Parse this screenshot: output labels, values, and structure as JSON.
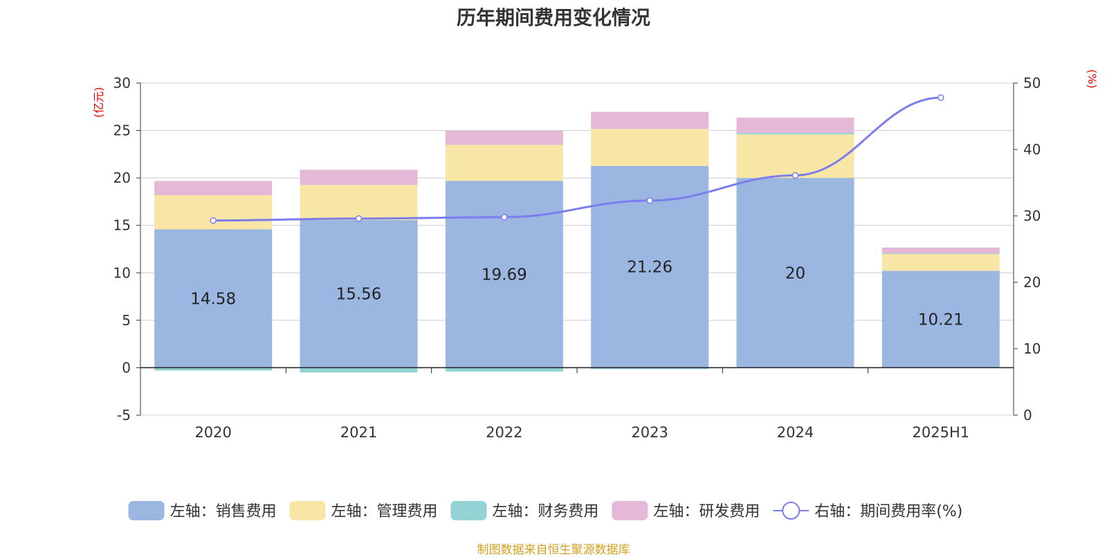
{
  "title": "历年期间费用变化情况",
  "footer": "制图数据来自恒生聚源数据库",
  "colors": {
    "sales": "#9ab6e1",
    "admin": "#f7e6a6",
    "finance": "#94d3d3",
    "rnd": "#e6b8d8",
    "rate": "#7b7ded",
    "axis_unit": "#e00000",
    "grid": "#cccccc",
    "axis": "#333333"
  },
  "chart_data": {
    "type": "bar",
    "stacked": true,
    "categories": [
      "2020",
      "2021",
      "2022",
      "2023",
      "2024",
      "2025H1"
    ],
    "left_axis": {
      "unit": "(亿元)",
      "ylim": [
        -5,
        30
      ],
      "ticks": [
        "-5",
        "0",
        "5",
        "10",
        "15",
        "20",
        "25",
        "30"
      ]
    },
    "right_axis": {
      "unit": "(%)",
      "ylim": [
        0,
        50
      ],
      "ticks": [
        "0",
        "10",
        "20",
        "30",
        "40",
        "50"
      ]
    },
    "series": [
      {
        "name": "左轴：销售费用",
        "key": "sales",
        "axis": "left",
        "values": [
          14.58,
          15.56,
          19.69,
          21.26,
          20,
          10.21
        ],
        "labels": [
          "14.58",
          "15.56",
          "19.69",
          "21.26",
          "20",
          "10.21"
        ]
      },
      {
        "name": "左轴：管理费用",
        "key": "admin",
        "axis": "left",
        "values": [
          3.6,
          3.7,
          3.8,
          3.9,
          4.6,
          1.8
        ]
      },
      {
        "name": "左轴：财务费用",
        "key": "finance",
        "axis": "left",
        "values": [
          -0.3,
          -0.5,
          -0.4,
          -0.15,
          0.15,
          0.05
        ]
      },
      {
        "name": "左轴：研发费用",
        "key": "rnd",
        "axis": "left",
        "values": [
          1.5,
          1.6,
          1.5,
          1.8,
          1.6,
          0.6
        ]
      },
      {
        "name": "右轴：期间费用率(%)",
        "key": "rate",
        "axis": "right",
        "type": "line",
        "values": [
          29.3,
          29.6,
          29.8,
          32.3,
          36.1,
          47.8
        ]
      }
    ],
    "legend_position": "bottom",
    "grid": true
  }
}
